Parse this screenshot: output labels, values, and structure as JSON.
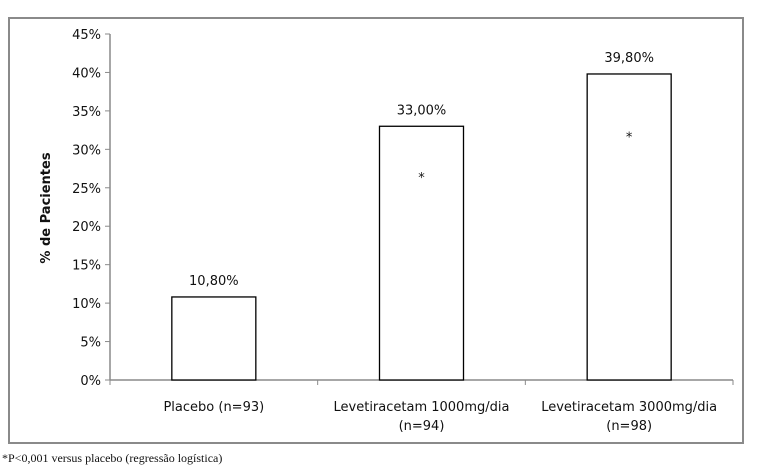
{
  "chart_data": {
    "type": "bar",
    "title": "",
    "xlabel": "",
    "ylabel": "% de Pacientes",
    "ylim": [
      0,
      45
    ],
    "yticks": [
      "0%",
      "5%",
      "10%",
      "15%",
      "20%",
      "25%",
      "30%",
      "35%",
      "40%",
      "45%"
    ],
    "grid": false,
    "categories": [
      [
        "Placebo (n=93)"
      ],
      [
        "Levetiracetam 1000mg/dia",
        "(n=94)"
      ],
      [
        "Levetiracetam 3000mg/dia",
        "(n=98)"
      ]
    ],
    "values": [
      10.8,
      33.0,
      39.8
    ],
    "data_labels": [
      "10,80%",
      "33,00%",
      "39,80%"
    ],
    "significance_marks": [
      "",
      "*",
      "*"
    ],
    "bar_fill": "#ffffff",
    "bar_stroke": "#000000"
  },
  "footnote": "*P<0,001 versus placebo (regressão logística)"
}
